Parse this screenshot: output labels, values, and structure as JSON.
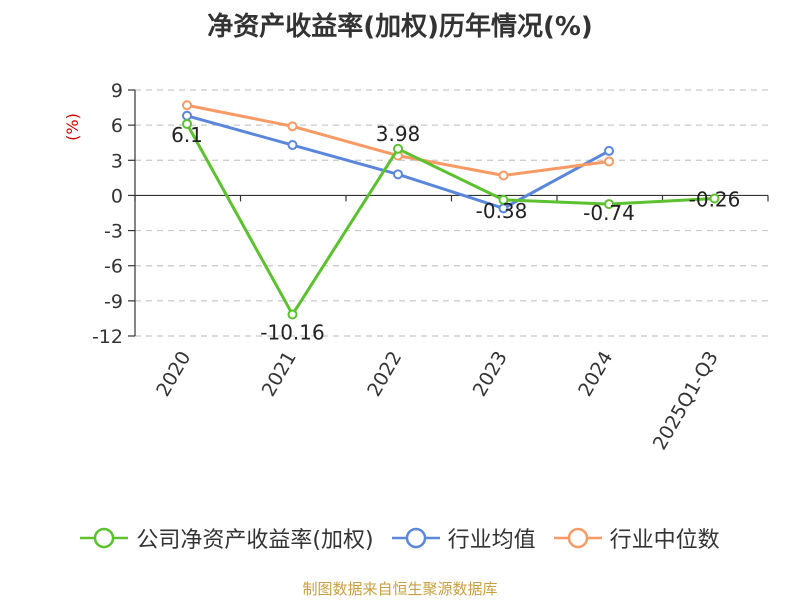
{
  "title": "净资产收益率(加权)历年情况(%)",
  "source_note": "制图数据来自恒生聚源数据库",
  "chart_data": {
    "type": "line",
    "title": "净资产收益率(加权)历年情况(%)",
    "ylabel": "(%)",
    "xlabel": "",
    "categories": [
      "2020",
      "2021",
      "2022",
      "2023",
      "2024",
      "2025Q1-Q3"
    ],
    "ylim": [
      -12,
      9
    ],
    "yticks": [
      9,
      6,
      3,
      0,
      -3,
      -6,
      -9,
      -12
    ],
    "grid": true,
    "legend_position": "bottom",
    "series": [
      {
        "name": "公司净资产收益率(加权)",
        "color": "#5cc12f",
        "values": [
          6.1,
          -10.16,
          3.98,
          -0.38,
          -0.74,
          -0.26
        ],
        "labels": [
          "6.1",
          "-10.16",
          "3.98",
          "-0.38",
          "-0.74",
          "-0.26"
        ]
      },
      {
        "name": "行业均值",
        "color": "#5b87db",
        "values": [
          6.8,
          4.3,
          1.8,
          -1.1,
          3.8,
          null
        ]
      },
      {
        "name": "行业中位数",
        "color": "#f79a65",
        "values": [
          7.7,
          5.9,
          3.4,
          1.7,
          2.9,
          null
        ]
      }
    ]
  }
}
